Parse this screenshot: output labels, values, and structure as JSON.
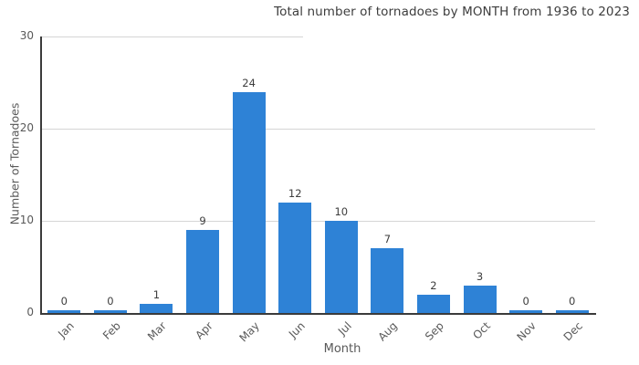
{
  "title": "Total number of tornadoes by MONTH from 1936 to 2023",
  "chart_data": {
    "type": "bar",
    "title": "Total number of tornadoes by MONTH from 1936 to 2023",
    "categories": [
      "Jan",
      "Feb",
      "Mar",
      "Apr",
      "May",
      "Jun",
      "Jul",
      "Aug",
      "Sep",
      "Oct",
      "Nov",
      "Dec"
    ],
    "values": [
      0,
      0,
      1,
      9,
      24,
      12,
      10,
      7,
      2,
      3,
      0,
      0
    ],
    "xlabel": "Month",
    "ylabel": "Number of Tornadoes",
    "ylim": [
      0,
      30
    ],
    "yticks": [
      0,
      10,
      20,
      30
    ],
    "grid": true,
    "legend": false,
    "value_labels": true,
    "colors": {
      "bar": "#2e82d6",
      "axis": "#3b3b3b",
      "gridline": "#d5d5d5",
      "title_text": "#3d3d3d",
      "tick_text": "#595959",
      "background": "#ffffff"
    }
  }
}
